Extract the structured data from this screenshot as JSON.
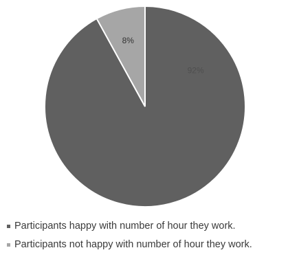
{
  "chart_data": {
    "type": "pie",
    "title": "",
    "categories": [
      "Participants happy with number of hour they work.",
      "Participants not happy with number of hour they work."
    ],
    "values": [
      92,
      8
    ],
    "labels": [
      "92%",
      "8%"
    ],
    "colors": [
      "#606060",
      "#a6a6a6"
    ],
    "label_colors": [
      "#4f4f4f",
      "#333333"
    ],
    "slice_border": "#ffffff",
    "legend_position": "bottom",
    "start": "12 o'clock",
    "direction": "clockwise"
  },
  "legend": {
    "items": [
      "Participants happy with number of hour they work.",
      "Participants not happy with number of hour they work."
    ]
  }
}
